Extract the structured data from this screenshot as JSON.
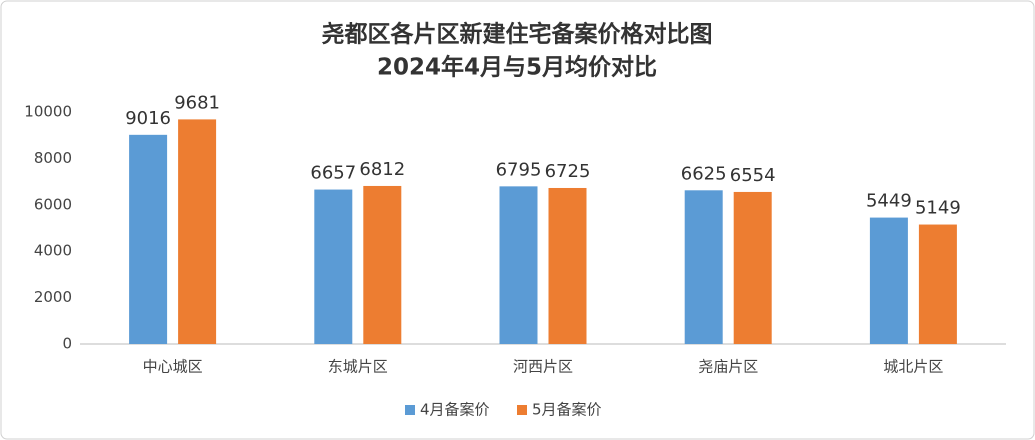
{
  "chart_data": {
    "type": "bar",
    "title": "尧都区各片区新建住宅备案价格对比图",
    "subtitle": "2024年4月与5月均价对比",
    "categories": [
      "中心城区",
      "东城片区",
      "河西片区",
      "尧庙片区",
      "城北片区"
    ],
    "series": [
      {
        "name": "4月备案价",
        "color": "#5b9bd5",
        "values": [
          9016,
          6657,
          6795,
          6625,
          5449
        ]
      },
      {
        "name": "5月备案价",
        "color": "#ed7d31",
        "values": [
          9681,
          6812,
          6725,
          6554,
          5149
        ]
      }
    ],
    "ylim": [
      0,
      10000
    ],
    "yticks": [
      0,
      2000,
      4000,
      6000,
      8000,
      10000
    ],
    "grid": false,
    "legend": "bottom",
    "data_labels": true
  }
}
